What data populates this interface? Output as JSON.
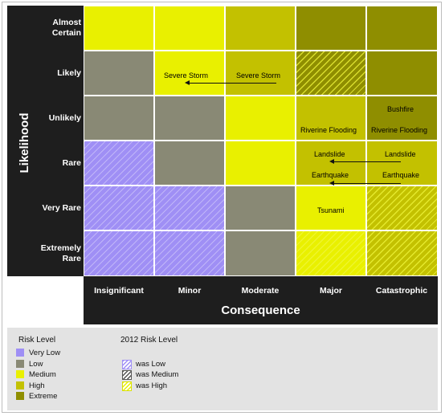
{
  "y_axis_title": "Likelihood",
  "x_axis_title": "Consequence",
  "rows": [
    {
      "label": "Almost Certain"
    },
    {
      "label": "Likely"
    },
    {
      "label": "Unlikely"
    },
    {
      "label": "Rare"
    },
    {
      "label": "Very Rare"
    },
    {
      "label": "Extremely Rare"
    }
  ],
  "columns": [
    "Insignificant",
    "Minor",
    "Moderate",
    "Major",
    "Catastrophic"
  ],
  "colors": {
    "very_low": "#9f8ff5",
    "low": "#898975",
    "medium": "#e9f000",
    "high": "#c3c100",
    "extreme": "#8f8e00"
  },
  "matrix": [
    [
      {
        "level": "medium",
        "was": ""
      },
      {
        "level": "medium",
        "was": ""
      },
      {
        "level": "high",
        "was": ""
      },
      {
        "level": "extreme",
        "was": ""
      },
      {
        "level": "extreme",
        "was": ""
      }
    ],
    [
      {
        "level": "low",
        "was": ""
      },
      {
        "level": "medium",
        "was": ""
      },
      {
        "level": "high",
        "was": ""
      },
      {
        "level": "extreme",
        "was": "high"
      },
      {
        "level": "extreme",
        "was": ""
      }
    ],
    [
      {
        "level": "low",
        "was": ""
      },
      {
        "level": "low",
        "was": ""
      },
      {
        "level": "medium",
        "was": ""
      },
      {
        "level": "high",
        "was": ""
      },
      {
        "level": "extreme",
        "was": ""
      }
    ],
    [
      {
        "level": "very_low",
        "was": "low"
      },
      {
        "level": "low",
        "was": ""
      },
      {
        "level": "medium",
        "was": ""
      },
      {
        "level": "high",
        "was": "medium"
      },
      {
        "level": "high",
        "was": ""
      }
    ],
    [
      {
        "level": "very_low",
        "was": "low"
      },
      {
        "level": "very_low",
        "was": "low"
      },
      {
        "level": "low",
        "was": ""
      },
      {
        "level": "medium",
        "was": ""
      },
      {
        "level": "high",
        "was": "high"
      }
    ],
    [
      {
        "level": "very_low",
        "was": "low"
      },
      {
        "level": "very_low",
        "was": "low"
      },
      {
        "level": "low",
        "was": ""
      },
      {
        "level": "medium",
        "was": "high"
      },
      {
        "level": "high",
        "was": "high"
      }
    ]
  ],
  "risks": {
    "severe_storm_minor": "Severe Storm",
    "severe_storm_moderate": "Severe Storm",
    "bushfire": "Bushfire",
    "riverine_flooding_major": "Riverine Flooding",
    "riverine_flooding_catastrophic": "Riverine Flooding",
    "landslide_major": "Landslide",
    "landslide_catastrophic": "Landslide",
    "earthquake_major": "Earthquake",
    "earthquake_catastrophic": "Earthquake",
    "tsunami": "Tsunami"
  },
  "legend": {
    "risk_level_title": "Risk Level",
    "risk_levels": [
      "Very Low",
      "Low",
      "Medium",
      "High",
      "Extreme"
    ],
    "prior_title": "2012 Risk Level",
    "prior_levels": [
      "was Low",
      "was Medium",
      "was High"
    ]
  }
}
